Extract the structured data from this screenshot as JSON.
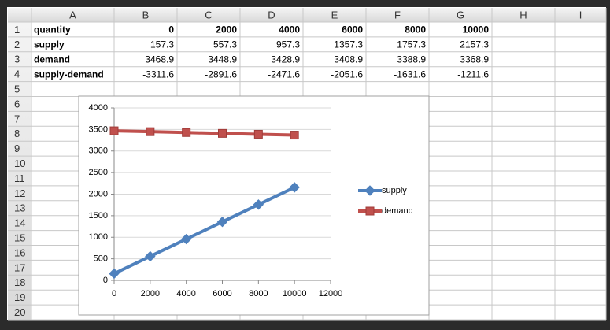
{
  "sheet": {
    "columns": [
      "A",
      "B",
      "C",
      "D",
      "E",
      "F",
      "G",
      "H",
      "I"
    ],
    "row_numbers": [
      1,
      2,
      3,
      4,
      5,
      6,
      7,
      8,
      9,
      10,
      11,
      12,
      13,
      14,
      15,
      16,
      17,
      18,
      19,
      20
    ],
    "rows": [
      [
        "quantity",
        0,
        2000,
        4000,
        6000,
        8000,
        10000
      ],
      [
        "supply",
        157.3,
        557.3,
        957.3,
        1357.3,
        1757.3,
        2157.3
      ],
      [
        "demand",
        3468.9,
        3448.9,
        3428.9,
        3408.9,
        3388.9,
        3368.9
      ],
      [
        "supply-demand",
        -3311.6,
        -2891.6,
        -2471.6,
        -2051.6,
        -1631.6,
        -1211.6
      ]
    ]
  },
  "chart_data": {
    "type": "line",
    "x": [
      0,
      2000,
      4000,
      6000,
      8000,
      10000
    ],
    "series": [
      {
        "name": "supply",
        "color": "#4f81bd",
        "marker": "diamond",
        "values": [
          157.3,
          557.3,
          957.3,
          1357.3,
          1757.3,
          2157.3
        ]
      },
      {
        "name": "demand",
        "color": "#c0504d",
        "marker": "square",
        "values": [
          3468.9,
          3448.9,
          3428.9,
          3408.9,
          3388.9,
          3368.9
        ]
      }
    ],
    "xlim": [
      0,
      12000
    ],
    "xticks": [
      0,
      2000,
      4000,
      6000,
      8000,
      10000,
      12000
    ],
    "ylim": [
      0,
      4000
    ],
    "yticks": [
      0,
      500,
      1000,
      1500,
      2000,
      2500,
      3000,
      3500,
      4000
    ],
    "grid": true,
    "legend": "right"
  }
}
